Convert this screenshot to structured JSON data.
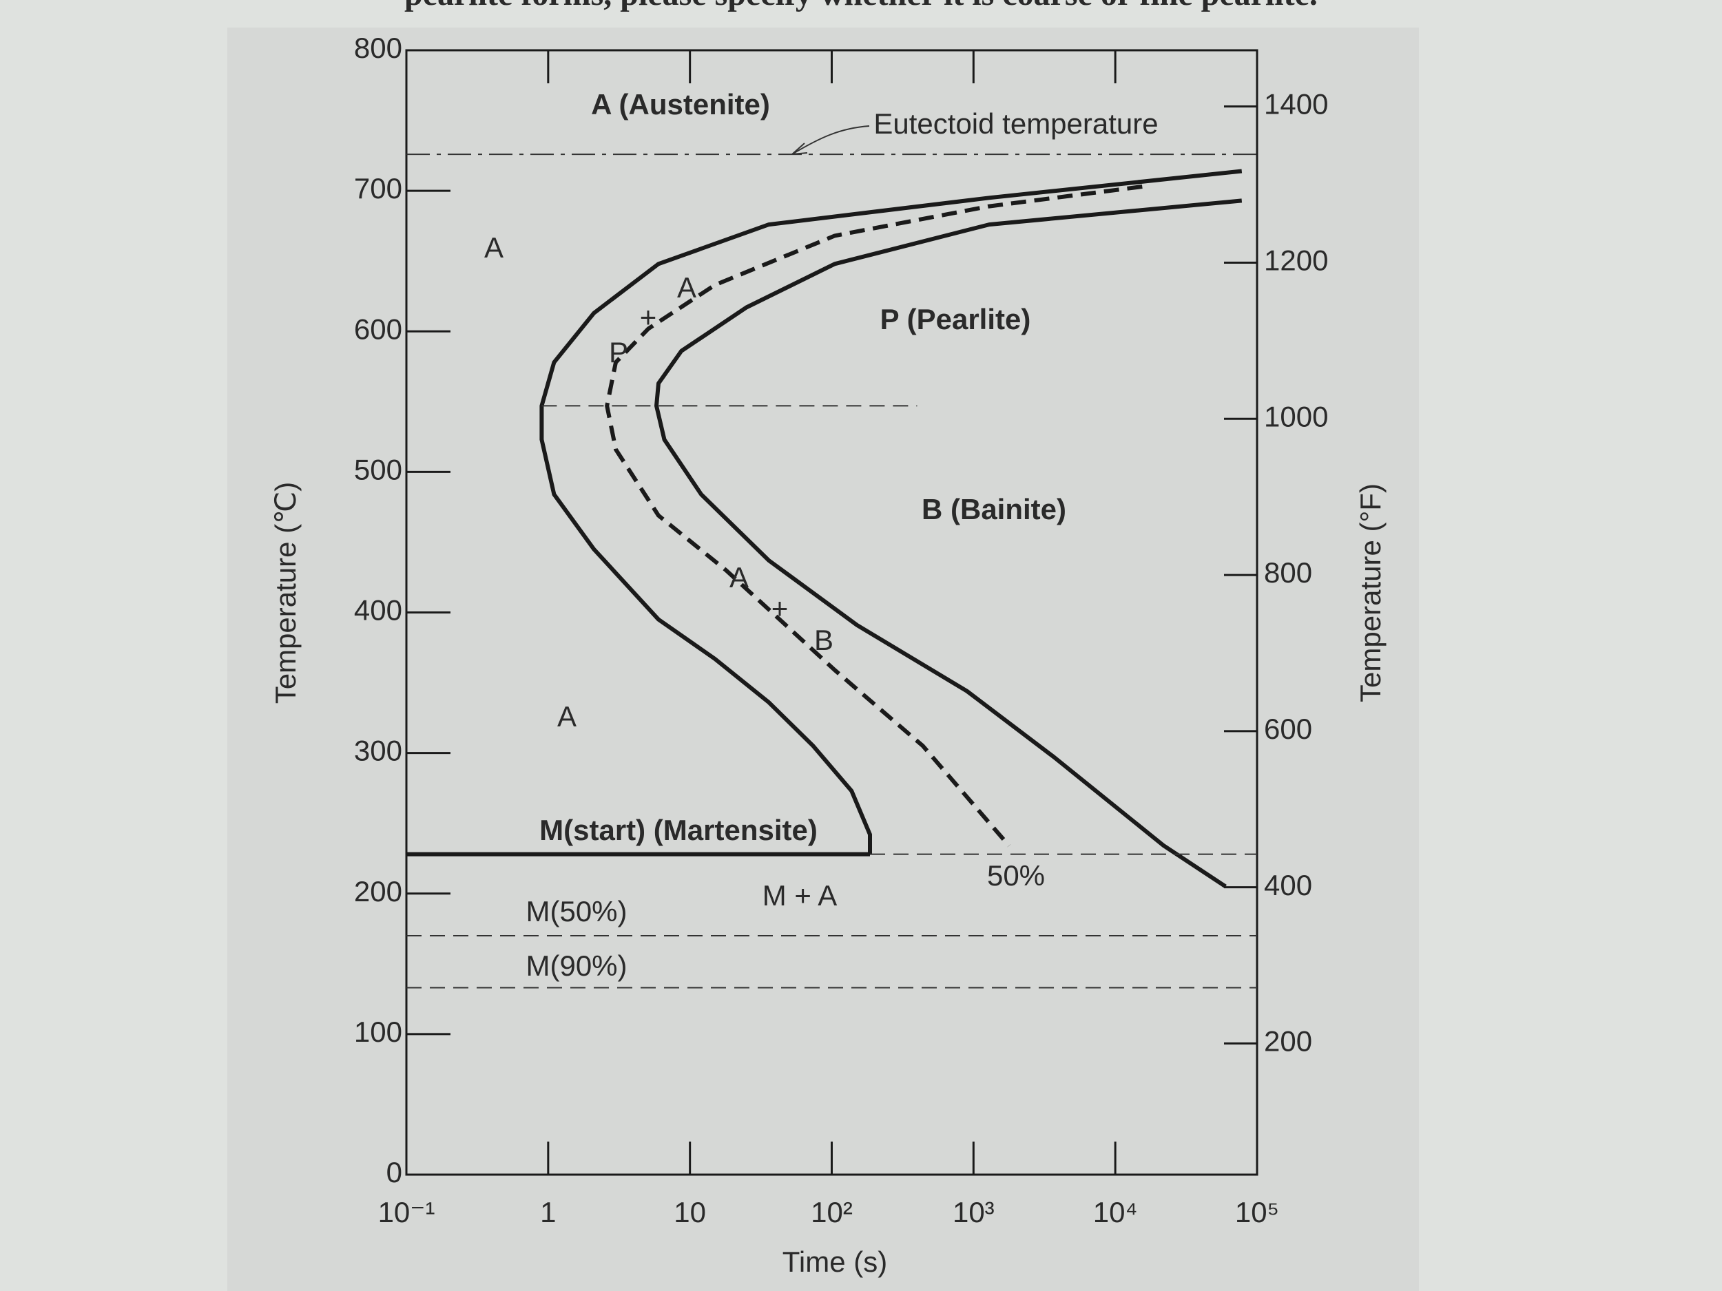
{
  "header_text": "pearlite forms, please specify whether it is coarse or fine pearlite.",
  "chart_data": {
    "type": "line",
    "x_label": "Time (s)",
    "y_label": "Temperature (℃)",
    "y2_label": "Temperature (°F)",
    "xscale": "log",
    "xlim": [
      0.1,
      100000
    ],
    "xticks": [
      {
        "value": 0.1,
        "label": "10⁻¹"
      },
      1,
      10,
      {
        "value": 100,
        "label": "10²"
      },
      {
        "value": 1000,
        "label": "10³"
      },
      {
        "value": 10000,
        "label": "10⁴"
      },
      {
        "value": 100000,
        "label": "10⁵"
      }
    ],
    "ylim": [
      0,
      800
    ],
    "yticks": [
      0,
      100,
      200,
      300,
      400,
      500,
      600,
      700,
      800
    ],
    "y2lim": [
      32,
      1472
    ],
    "y2ticks": [
      200,
      400,
      600,
      800,
      1000,
      1200,
      1400
    ],
    "series": [
      {
        "color": "#1a1a1a",
        "dash": "solid",
        "width": 6,
        "x": [
          78000,
          1290,
          36,
          6.0,
          2.1,
          1.1,
          0.9,
          0.9,
          1.1,
          2.1,
          6.0,
          15,
          36,
          74,
          138,
          186,
          186
        ],
        "values": [
          714,
          695,
          676,
          648,
          613,
          578,
          547,
          523,
          484,
          445,
          395,
          367,
          336,
          305,
          273,
          242,
          228
        ]
      },
      {
        "color": "#1a1a1a",
        "dash": "dashed",
        "width": 6,
        "x": [
          15500,
          1290,
          105,
          15,
          5.1,
          3.0,
          2.6,
          3.0,
          6.0,
          18,
          105,
          440,
          1780
        ],
        "values": [
          703,
          689,
          668,
          633,
          602,
          578,
          547,
          516,
          469,
          430,
          359,
          305,
          234
        ]
      },
      {
        "color": "#1a1a1a",
        "dash": "solid",
        "width": 6,
        "x": [
          78000,
          1290,
          105,
          25,
          8.7,
          6.0,
          5.8,
          6.6,
          12,
          36,
          151,
          900,
          3700,
          22000,
          60000
        ],
        "values": [
          693,
          676,
          648,
          617,
          586,
          563,
          547,
          523,
          484,
          437,
          391,
          344,
          297,
          234,
          205
        ]
      },
      {
        "color": "#1a1a1a",
        "dash": "solid",
        "width": 6,
        "x": [
          0.1,
          186
        ],
        "values": [
          228,
          228
        ]
      },
      {
        "color": "#333333",
        "dash": "dashed",
        "width": 2,
        "x": [
          186,
          100000
        ],
        "values": [
          228,
          228
        ]
      },
      {
        "color": "#333333",
        "dash": "dashed",
        "width": 2,
        "x": [
          0.9,
          400
        ],
        "values": [
          547,
          547
        ]
      },
      {
        "color": "#333333",
        "dash": "dashdot",
        "width": 2,
        "x": [
          0.1,
          100000
        ],
        "values": [
          726,
          726
        ]
      },
      {
        "color": "#333333",
        "dash": "dashed",
        "width": 2,
        "x": [
          0.1,
          100000
        ],
        "values": [
          170,
          170
        ]
      },
      {
        "color": "#333333",
        "dash": "dashed",
        "width": 2,
        "x": [
          0.1,
          100000
        ],
        "values": [
          133,
          133
        ]
      }
    ],
    "annotations": [
      "A (Austenite)",
      "Eutectoid temperature",
      "A",
      "P (Pearlite)",
      "B (Bainite)",
      "A",
      "M(start) (Martensite)",
      "50%",
      "M + A",
      "M(50%)",
      "M(90%)",
      "A",
      "+",
      "P",
      "A",
      "+",
      "B"
    ]
  }
}
